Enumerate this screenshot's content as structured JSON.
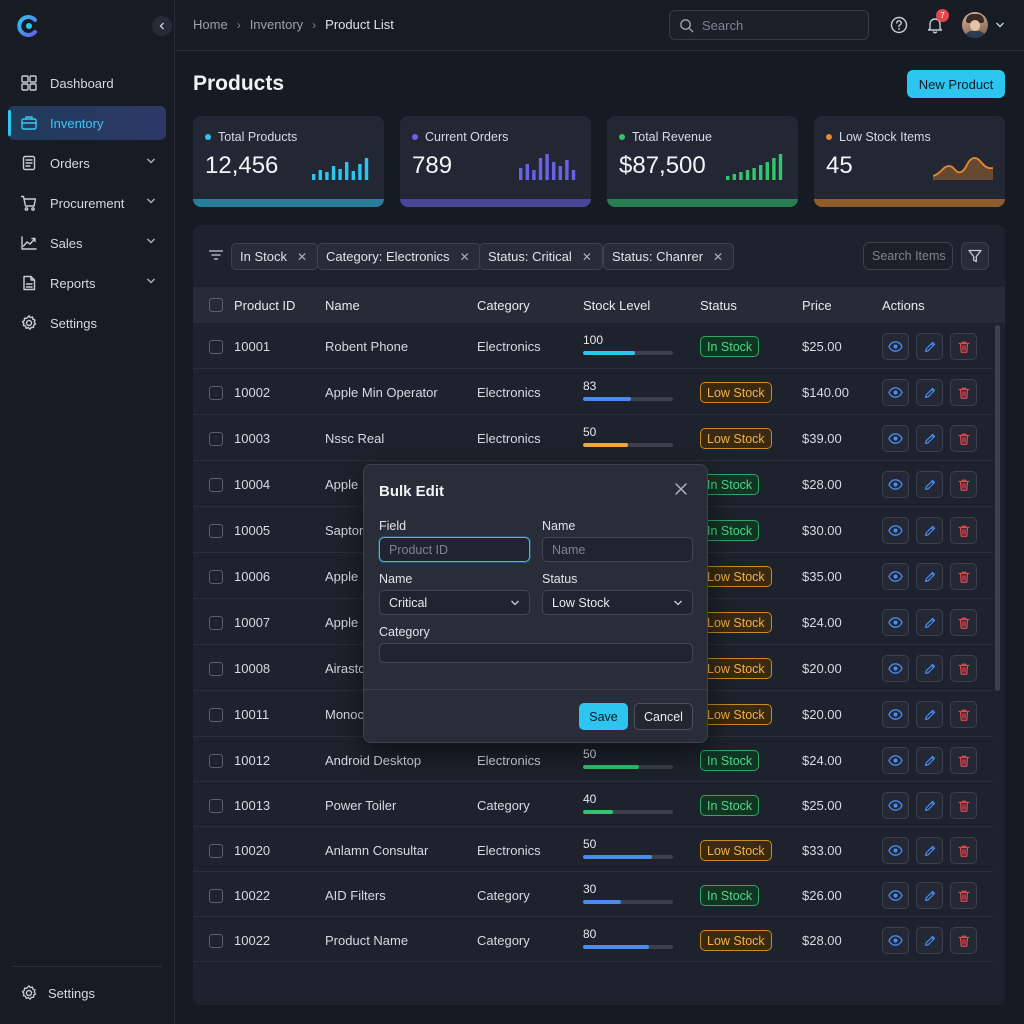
{
  "breadcrumb": [
    "Home",
    "Inventory",
    "Product List"
  ],
  "search": {
    "placeholder": "Search"
  },
  "notifications": {
    "count": "7"
  },
  "sidebar": {
    "items": [
      {
        "label": "Dashboard",
        "icon": "dashboard-icon",
        "expandable": false,
        "active": false
      },
      {
        "label": "Inventory",
        "icon": "inventory-icon",
        "expandable": false,
        "active": true
      },
      {
        "label": "Orders",
        "icon": "orders-icon",
        "expandable": true,
        "active": false
      },
      {
        "label": "Procurement",
        "icon": "cart-icon",
        "expandable": true,
        "active": false
      },
      {
        "label": "Sales",
        "icon": "trend-icon",
        "expandable": true,
        "active": false
      },
      {
        "label": "Reports",
        "icon": "reports-icon",
        "expandable": true,
        "active": false
      },
      {
        "label": "Settings",
        "icon": "gear-icon",
        "expandable": false,
        "active": false
      }
    ],
    "bottom_label": "Settings"
  },
  "page": {
    "title": "Products",
    "new_button": "New Product"
  },
  "cards": [
    {
      "label": "Total Products",
      "value": "12,456",
      "color": "#2bc5ef"
    },
    {
      "label": "Current Orders",
      "value": "789",
      "color": "#6a63e6"
    },
    {
      "label": "Total Revenue",
      "value": "$87,500",
      "color": "#32c56c"
    },
    {
      "label": "Low Stock Items",
      "value": "45",
      "color": "#e88a2a"
    }
  ],
  "filters": {
    "chips": [
      "In Stock",
      "Category: Electronics",
      "Status: Critical",
      "Status: Chanrer"
    ],
    "search_placeholder": "Search Items"
  },
  "table": {
    "columns": [
      "Product ID",
      "Name",
      "Category",
      "Stock Level",
      "Status",
      "Price",
      "Actions"
    ],
    "rows": [
      {
        "id": "10001",
        "name": "Robent Phone",
        "category": "Electronics",
        "stock": "100",
        "fill": 0.58,
        "bar": "#2bc5ef",
        "status": "In Stock",
        "kind": "in",
        "price": "$25.00"
      },
      {
        "id": "10002",
        "name": "Apple Min Operator",
        "category": "Electronics",
        "stock": "83",
        "fill": 0.53,
        "bar": "#4a8cf0",
        "status": "Low Stock",
        "kind": "low",
        "price": "$140.00"
      },
      {
        "id": "10003",
        "name": "Nssc Real",
        "category": "Electronics",
        "stock": "50",
        "fill": 0.5,
        "bar": "#f2a93b",
        "status": "Low Stock",
        "kind": "low",
        "price": "$39.00"
      },
      {
        "id": "10004",
        "name": "Apple",
        "category": "",
        "stock": "",
        "fill": 0,
        "bar": "#4a8cf0",
        "status": "In Stock",
        "kind": "in",
        "price": "$28.00"
      },
      {
        "id": "10005",
        "name": "Saptor",
        "category": "",
        "stock": "",
        "fill": 0,
        "bar": "#4a8cf0",
        "status": "In Stock",
        "kind": "in",
        "price": "$30.00"
      },
      {
        "id": "10006",
        "name": "Apple",
        "category": "",
        "stock": "",
        "fill": 0,
        "bar": "#4a8cf0",
        "status": "Low Stock",
        "kind": "low",
        "price": "$35.00"
      },
      {
        "id": "10007",
        "name": "Apple",
        "category": "",
        "stock": "",
        "fill": 0,
        "bar": "#4a8cf0",
        "status": "Low Stock",
        "kind": "low",
        "price": "$24.00"
      },
      {
        "id": "10008",
        "name": "Airastc",
        "category": "",
        "stock": "",
        "fill": 0,
        "bar": "#4a8cf0",
        "status": "Low Stock",
        "kind": "low",
        "price": "$20.00"
      },
      {
        "id": "10011",
        "name": "Monoc",
        "category": "",
        "stock": "",
        "fill": 0,
        "bar": "#4a8cf0",
        "status": "Low Stock",
        "kind": "low",
        "price": "$20.00"
      },
      {
        "id": "10012",
        "name": "Android Desktop",
        "category": "Electronics",
        "stock": "50",
        "fill": 0.62,
        "bar": "#32c56c",
        "status": "In Stock",
        "kind": "in",
        "price": "$24.00"
      },
      {
        "id": "10013",
        "name": "Power Toiler",
        "category": "Category",
        "stock": "40",
        "fill": 0.33,
        "bar": "#32c56c",
        "status": "In Stock",
        "kind": "in",
        "price": "$25.00"
      },
      {
        "id": "10020",
        "name": "Anlamn Consultar",
        "category": "Electronics",
        "stock": "50",
        "fill": 0.77,
        "bar": "#4a8cf0",
        "status": "Low Stock",
        "kind": "low",
        "price": "$33.00"
      },
      {
        "id": "10022",
        "name": "AID Filters",
        "category": "Category",
        "stock": "30",
        "fill": 0.42,
        "bar": "#4a8cf0",
        "status": "In Stock",
        "kind": "in",
        "price": "$26.00"
      },
      {
        "id": "10022",
        "name": "Product Name",
        "category": "Category",
        "stock": "80",
        "fill": 0.73,
        "bar": "#4a8cf0",
        "status": "Low Stock",
        "kind": "low",
        "price": "$28.00"
      }
    ]
  },
  "modal": {
    "title": "Bulk Edit",
    "field_label": "Field",
    "field_placeholder": "Product ID",
    "name_label": "Name",
    "name_placeholder": "Name",
    "name2_label": "Name",
    "name2_value": "Critical",
    "status_label": "Status",
    "status_value": "Low Stock",
    "category_label": "Category",
    "save": "Save",
    "cancel": "Cancel"
  }
}
